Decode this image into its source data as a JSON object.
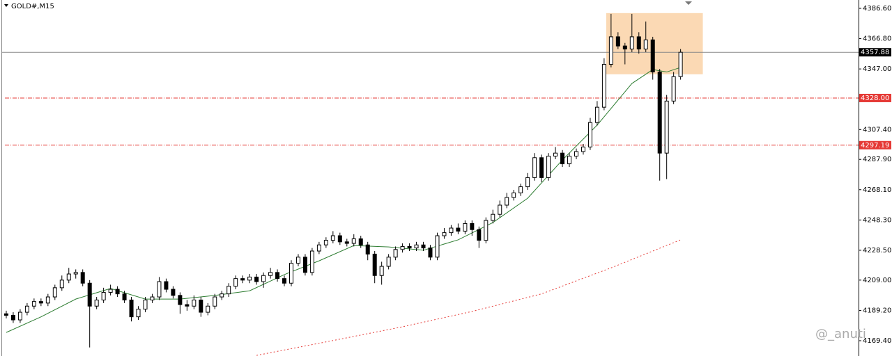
{
  "chart_data": {
    "type": "candlestick",
    "title": "GOLD#,M15",
    "watermark": "@_anuti",
    "ylim": [
      4159.4,
      4392.05
    ],
    "xlim": [
      -0.6,
      122.6
    ],
    "yticks": [
      {
        "value": 4386.6,
        "label": "4386.60"
      },
      {
        "value": 4366.8,
        "label": "4366.80"
      },
      {
        "value": 4347,
        "label": "4347.00"
      },
      {
        "value": 4307.4,
        "label": "4307.40"
      },
      {
        "value": 4287.9,
        "label": "4287.90"
      },
      {
        "value": 4268.1,
        "label": "4268.10"
      },
      {
        "value": 4248.3,
        "label": "4248.30"
      },
      {
        "value": 4228.5,
        "label": "4228.50"
      },
      {
        "value": 4209,
        "label": "4209.00"
      },
      {
        "value": 4189.2,
        "label": "4189.20"
      },
      {
        "value": 4169.4,
        "label": "4169.40"
      }
    ],
    "up_color": "#ffffff",
    "down_color": "#000000",
    "open": [
      4187,
      4186,
      4183,
      4188,
      4192,
      4195,
      4194,
      4198,
      4204,
      4209,
      4213,
      4214,
      4207,
      4192,
      4196,
      4201,
      4203,
      4200,
      4196,
      4185,
      4190,
      4196,
      4198,
      4208,
      4203,
      4199,
      4193,
      4192,
      4196,
      4188,
      4192,
      4198,
      4200,
      4205,
      4210,
      4209,
      4211,
      4208,
      4212,
      4214,
      4210,
      4207,
      4220,
      4224,
      4214,
      4228,
      4232,
      4235,
      4238,
      4234,
      4233,
      4236,
      4232,
      4226,
      4212,
      4218,
      4224,
      4229,
      4231,
      4230,
      4232,
      4230,
      4224,
      4238,
      4240,
      4243,
      4241,
      4246,
      4242,
      4235,
      4248,
      4252,
      4258,
      4263,
      4266,
      4270,
      4276,
      4289,
      4276,
      4290,
      4292,
      4285,
      4290,
      4293,
      4296,
      4312,
      4322,
      4350,
      4368,
      4362,
      4360,
      4368,
      4360,
      4366,
      4345,
      4292,
      4326,
      4342
    ],
    "high": [
      4189,
      4188,
      4190,
      4194,
      4197,
      4197,
      4200,
      4206,
      4212,
      4217,
      4216,
      4216,
      4209,
      4198,
      4204,
      4206,
      4205,
      4202,
      4198,
      4192,
      4198,
      4200,
      4211,
      4210,
      4205,
      4201,
      4196,
      4199,
      4198,
      4194,
      4200,
      4202,
      4207,
      4212,
      4212,
      4213,
      4213,
      4214,
      4217,
      4216,
      4212,
      4222,
      4226,
      4226,
      4230,
      4234,
      4237,
      4241,
      4240,
      4236,
      4239,
      4238,
      4234,
      4228,
      4221,
      4226,
      4231,
      4233,
      4233,
      4234,
      4234,
      4232,
      4240,
      4243,
      4245,
      4246,
      4248,
      4248,
      4244,
      4250,
      4255,
      4261,
      4266,
      4268,
      4272,
      4279,
      4292,
      4291,
      4292,
      4296,
      4294,
      4292,
      4295,
      4298,
      4315,
      4326,
      4354,
      4383,
      4371,
      4364,
      4383,
      4371,
      4378,
      4368,
      4347,
      4330,
      4345,
      4360
    ],
    "low": [
      4184,
      4181,
      4181,
      4186,
      4190,
      4192,
      4192,
      4196,
      4202,
      4207,
      4210,
      4205,
      4165,
      4190,
      4194,
      4199,
      4198,
      4194,
      4182,
      4183,
      4188,
      4194,
      4196,
      4201,
      4197,
      4187,
      4189,
      4190,
      4185,
      4186,
      4190,
      4196,
      4198,
      4203,
      4207,
      4207,
      4206,
      4204,
      4210,
      4208,
      4205,
      4205,
      4218,
      4212,
      4212,
      4226,
      4230,
      4233,
      4232,
      4231,
      4231,
      4230,
      4222,
      4207,
      4206,
      4216,
      4222,
      4227,
      4228,
      4228,
      4228,
      4222,
      4222,
      4236,
      4238,
      4239,
      4239,
      4238,
      4230,
      4233,
      4246,
      4250,
      4256,
      4261,
      4264,
      4268,
      4274,
      4273,
      4274,
      4288,
      4283,
      4283,
      4288,
      4291,
      4294,
      4310,
      4320,
      4348,
      4360,
      4350,
      4358,
      4357,
      4358,
      4340,
      4274,
      4275,
      4324,
      4340
    ],
    "close": [
      4186,
      4183,
      4188,
      4192,
      4195,
      4194,
      4198,
      4204,
      4209,
      4213,
      4214,
      4207,
      4192,
      4196,
      4201,
      4203,
      4200,
      4196,
      4185,
      4190,
      4196,
      4198,
      4208,
      4203,
      4199,
      4193,
      4192,
      4196,
      4188,
      4192,
      4198,
      4200,
      4205,
      4210,
      4209,
      4211,
      4208,
      4212,
      4214,
      4210,
      4207,
      4220,
      4224,
      4214,
      4228,
      4232,
      4235,
      4238,
      4234,
      4233,
      4236,
      4232,
      4226,
      4212,
      4218,
      4224,
      4229,
      4231,
      4230,
      4232,
      4230,
      4224,
      4238,
      4240,
      4243,
      4241,
      4246,
      4242,
      4235,
      4248,
      4252,
      4258,
      4263,
      4266,
      4270,
      4276,
      4289,
      4276,
      4290,
      4292,
      4285,
      4290,
      4293,
      4296,
      4312,
      4322,
      4350,
      4368,
      4362,
      4360,
      4368,
      4360,
      4366,
      4345,
      4292,
      4326,
      4342,
      4357.9
    ],
    "lines": [
      {
        "color": "#2e7d32",
        "dash": "none",
        "x": [
          0,
          5,
          10,
          15,
          20,
          25,
          30,
          35,
          40,
          45,
          50,
          55,
          60,
          65,
          70,
          75,
          80,
          85,
          90,
          93,
          95,
          97
        ],
        "values": [
          4174.8,
          4185,
          4196.6,
          4203.5,
          4196.6,
          4196.6,
          4199,
          4202,
          4212.6,
          4221.6,
          4231.6,
          4230.7,
          4228.5,
          4235.3,
          4246.6,
          4262.5,
          4287.5,
          4310.3,
          4337.5,
          4346.6,
          4345,
          4348
        ]
      },
      {
        "color": "#e53935",
        "dash": "2 3",
        "x": [
          36,
          47,
          57,
          67,
          77,
          87,
          97
        ],
        "values": [
          4159.8,
          4169.5,
          4178.5,
          4188.5,
          4200,
          4217,
          4235.3
        ]
      }
    ],
    "zone": {
      "color": "#fbd9b4",
      "x": [
        86.3,
        100.2
      ],
      "y": [
        4343.5,
        4383.5
      ]
    },
    "current_price": {
      "value": 4357.88,
      "label": "4357.88"
    },
    "levels": [
      {
        "value": 4328,
        "label": "4328.00",
        "color": "#e53935"
      },
      {
        "value": 4297.19,
        "label": "4297.19",
        "color": "#e53935"
      }
    ]
  }
}
